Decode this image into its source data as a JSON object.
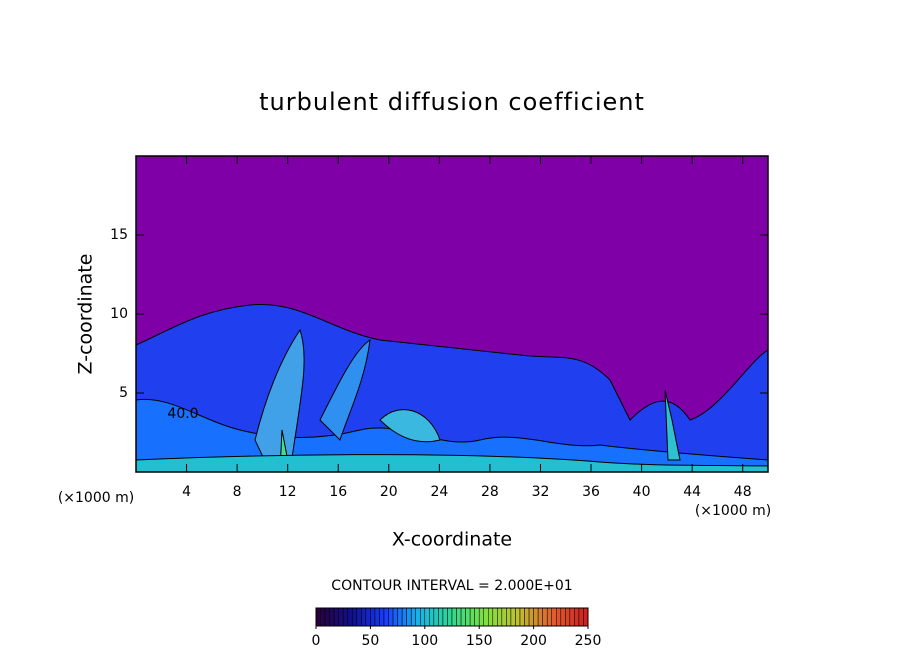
{
  "chart_data": {
    "type": "contour",
    "title": "turbulent diffusion coefficient",
    "xlabel": "X-coordinate",
    "ylabel": "Z-coordinate",
    "x_unit_label": "(×1000 m)",
    "xlim": [
      0,
      50
    ],
    "xticks": [
      4,
      8,
      12,
      16,
      20,
      24,
      28,
      32,
      36,
      40,
      44,
      48
    ],
    "ylim": [
      0,
      20
    ],
    "yticks": [
      5,
      10,
      15
    ],
    "contour_interval_label": "CONTOUR INTERVAL = 2.000E+01",
    "contour_label": "40.0",
    "background_color": "#7f00a6",
    "colorbar": {
      "lim": [
        0,
        250
      ],
      "ticks": [
        0,
        50,
        100,
        150,
        200,
        250
      ],
      "colors": [
        "#2a0040",
        "#10108a",
        "#1a3cff",
        "#18b4e8",
        "#30d890",
        "#80e040",
        "#c0c030",
        "#e06030",
        "#d02020"
      ]
    }
  }
}
